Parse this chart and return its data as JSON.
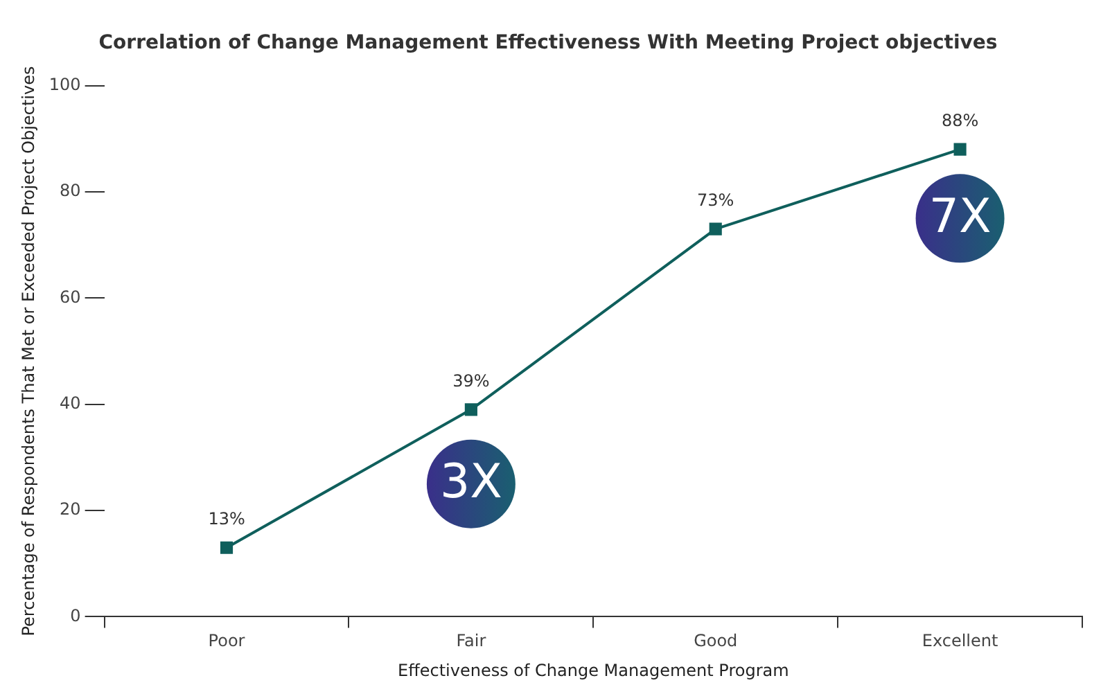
{
  "chart_data": {
    "type": "line",
    "title": "Correlation of Change Management Effectiveness With Meeting Project objectives",
    "xlabel": "Effectiveness of Change Management Program",
    "ylabel": "Percentage of Respondents That Met or Exceeded Project Objectives",
    "categories": [
      "Poor",
      "Fair",
      "Good",
      "Excellent"
    ],
    "series": [
      {
        "color": "#0f5f5c",
        "values": [
          13,
          39,
          73,
          88
        ],
        "value_labels": [
          "13%",
          "39%",
          "73%",
          "88%"
        ]
      }
    ],
    "ylim": [
      0,
      100
    ],
    "yticks": [
      0,
      20,
      40,
      60,
      80,
      100
    ],
    "grid": false,
    "legend": false,
    "marker": "square",
    "line_style": "solid",
    "annotations": [
      "3X",
      "7X"
    ]
  }
}
